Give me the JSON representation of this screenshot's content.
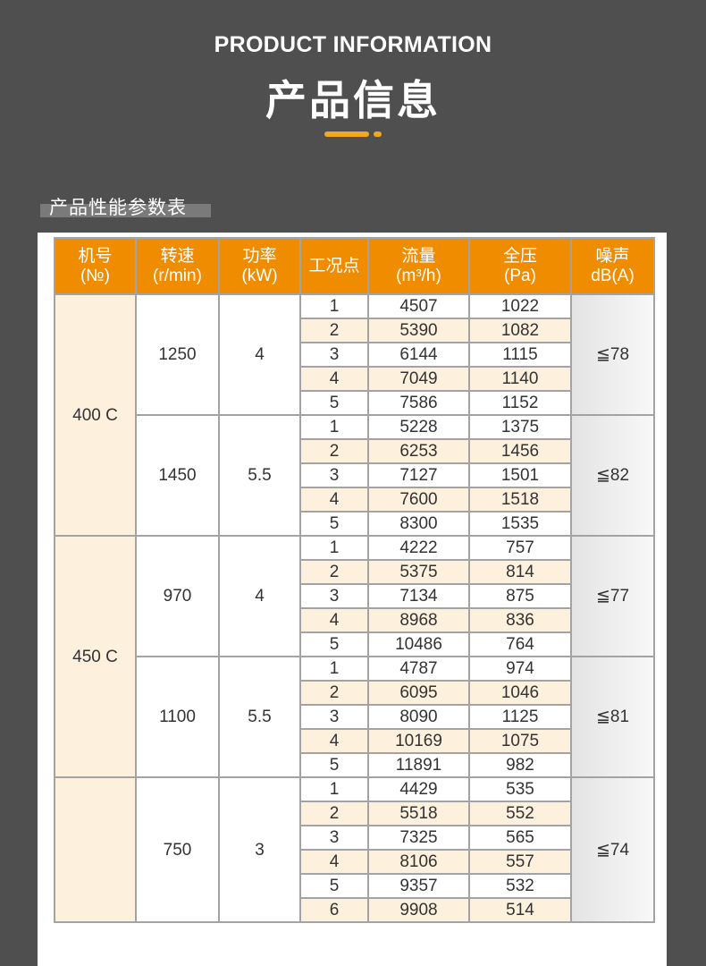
{
  "header": {
    "title_en": "PRODUCT INFORMATION",
    "title_cn": "产品信息"
  },
  "section": {
    "title": "产品性能参数表"
  },
  "table": {
    "columns": [
      {
        "name": "机号",
        "unit": "(№)"
      },
      {
        "name": "转速",
        "unit": "(r/min)"
      },
      {
        "name": "功率",
        "unit": "(kW)"
      },
      {
        "name": "工况点",
        "unit": ""
      },
      {
        "name": "流量",
        "unit": "(m³/h)"
      },
      {
        "name": "全压",
        "unit": "(Pa)"
      },
      {
        "name": "噪声",
        "unit": "dB(A)"
      }
    ],
    "groups": [
      {
        "model": "400 C",
        "speeds": [
          {
            "rpm": "1250",
            "power": "4",
            "noise": "≦78",
            "points": [
              [
                "1",
                "4507",
                "1022"
              ],
              [
                "2",
                "5390",
                "1082"
              ],
              [
                "3",
                "6144",
                "1115"
              ],
              [
                "4",
                "7049",
                "1140"
              ],
              [
                "5",
                "7586",
                "1152"
              ]
            ]
          },
          {
            "rpm": "1450",
            "power": "5.5",
            "noise": "≦82",
            "points": [
              [
                "1",
                "5228",
                "1375"
              ],
              [
                "2",
                "6253",
                "1456"
              ],
              [
                "3",
                "7127",
                "1501"
              ],
              [
                "4",
                "7600",
                "1518"
              ],
              [
                "5",
                "8300",
                "1535"
              ]
            ]
          }
        ]
      },
      {
        "model": "450 C",
        "speeds": [
          {
            "rpm": "970",
            "power": "4",
            "noise": "≦77",
            "points": [
              [
                "1",
                "4222",
                "757"
              ],
              [
                "2",
                "5375",
                "814"
              ],
              [
                "3",
                "7134",
                "875"
              ],
              [
                "4",
                "8968",
                "836"
              ],
              [
                "5",
                "10486",
                "764"
              ]
            ]
          },
          {
            "rpm": "1100",
            "power": "5.5",
            "noise": "≦81",
            "points": [
              [
                "1",
                "4787",
                "974"
              ],
              [
                "2",
                "6095",
                "1046"
              ],
              [
                "3",
                "8090",
                "1125"
              ],
              [
                "4",
                "10169",
                "1075"
              ],
              [
                "5",
                "11891",
                "982"
              ]
            ]
          }
        ]
      },
      {
        "model": "",
        "speeds": [
          {
            "rpm": "750",
            "power": "3",
            "noise": "≦74",
            "points": [
              [
                "1",
                "4429",
                "535"
              ],
              [
                "2",
                "5518",
                "552"
              ],
              [
                "3",
                "7325",
                "565"
              ],
              [
                "4",
                "8106",
                "557"
              ],
              [
                "5",
                "9357",
                "532"
              ],
              [
                "6",
                "9908",
                "514"
              ]
            ]
          }
        ]
      }
    ]
  },
  "colors": {
    "background": "#4f4f4f",
    "header_orange": "#f08c00",
    "accent": "#f2a81d",
    "highlight_row": "#fdf0dc"
  }
}
